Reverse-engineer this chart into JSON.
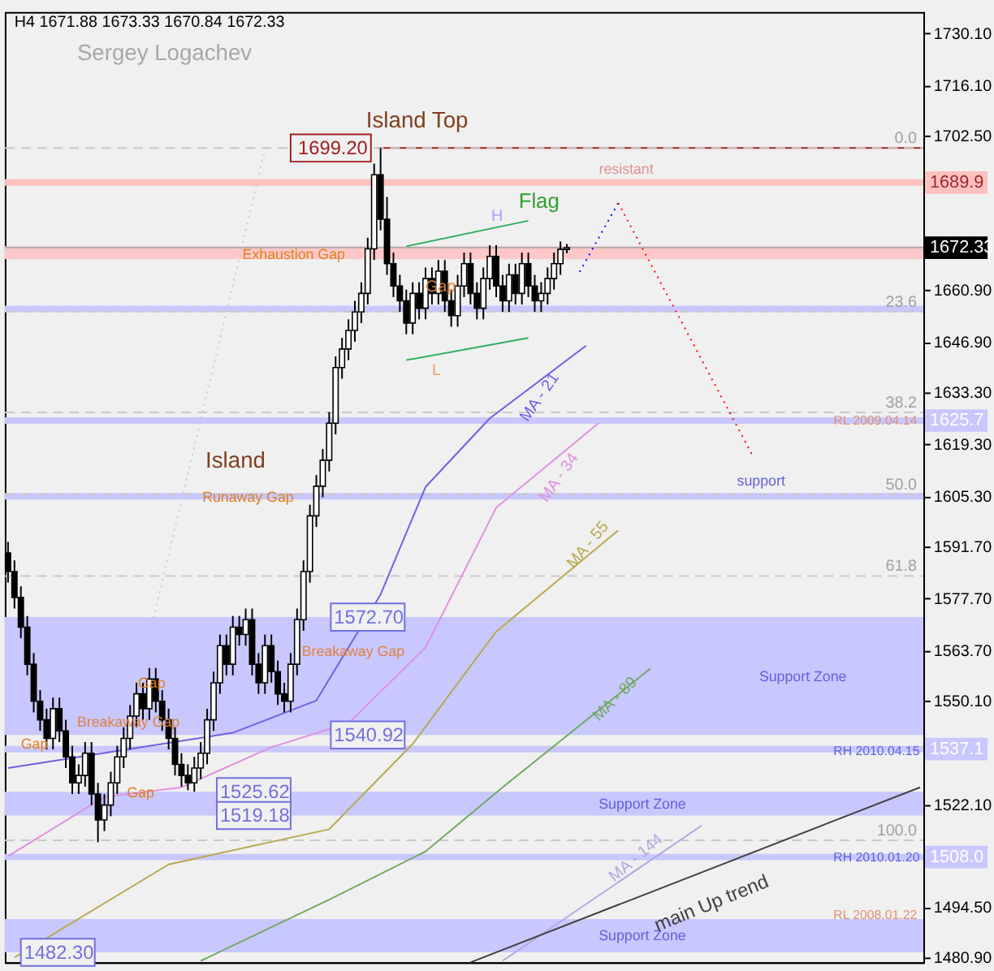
{
  "chart_data": {
    "type": "candlestick",
    "categories": [
      null,
      null,
      null,
      null,
      null,
      null,
      null,
      null,
      null,
      null,
      null,
      null,
      null,
      null,
      null,
      null,
      null,
      null,
      null,
      null,
      null,
      null,
      null,
      null,
      null,
      null,
      null,
      null,
      null,
      null,
      null,
      null,
      null,
      null,
      null,
      null,
      null,
      null,
      null,
      null,
      null,
      null,
      null,
      null,
      null,
      null,
      null,
      null,
      null,
      null,
      null,
      null,
      null,
      null,
      null,
      null,
      null,
      null,
      null,
      null,
      null,
      null,
      null,
      null,
      null,
      null,
      null,
      null,
      null,
      null,
      null,
      null,
      null,
      null,
      null,
      null,
      null,
      null,
      null,
      null,
      null,
      null,
      null,
      null,
      null,
      null,
      null,
      null,
      null,
      null,
      null,
      null,
      null,
      null,
      null,
      null,
      null,
      null,
      null,
      null,
      null,
      null,
      null,
      null,
      null,
      null,
      null,
      null,
      null,
      null,
      null,
      null,
      null,
      null,
      null,
      null,
      null,
      null,
      null,
      null,
      null,
      null,
      null,
      null,
      null,
      null,
      null,
      null,
      null,
      null,
      null,
      null,
      null,
      null,
      null,
      null,
      null,
      null,
      null,
      null,
      null,
      null,
      null
    ],
    "ohlc": [
      [
        1590,
        1593,
        1582,
        1585
      ],
      [
        1585,
        1588,
        1575,
        1578
      ],
      [
        1578,
        1581,
        1567,
        1570
      ],
      [
        1570,
        1573,
        1557,
        1560
      ],
      [
        1560,
        1563,
        1547,
        1550
      ],
      [
        1550,
        1553,
        1542,
        1545
      ],
      [
        1545,
        1548,
        1537,
        1540
      ],
      [
        1540,
        1551,
        1537,
        1548
      ],
      [
        1548,
        1551,
        1539,
        1542
      ],
      [
        1542,
        1545,
        1532,
        1535
      ],
      [
        1535,
        1538,
        1525,
        1528
      ],
      [
        1528,
        1533,
        1525,
        1530
      ],
      [
        1530,
        1539,
        1527,
        1536
      ],
      [
        1536,
        1539,
        1522,
        1525
      ],
      [
        1525,
        1528,
        1512,
        1518
      ],
      [
        1518,
        1525,
        1515,
        1522
      ],
      [
        1522,
        1531,
        1519,
        1528
      ],
      [
        1528,
        1538,
        1525,
        1535
      ],
      [
        1535,
        1543,
        1532,
        1540
      ],
      [
        1540,
        1549,
        1537,
        1546
      ],
      [
        1546,
        1555,
        1543,
        1552
      ],
      [
        1552,
        1555,
        1545,
        1548
      ],
      [
        1548,
        1559,
        1545,
        1556
      ],
      [
        1556,
        1559,
        1547,
        1550
      ],
      [
        1550,
        1553,
        1542,
        1545
      ],
      [
        1545,
        1548,
        1537,
        1540
      ],
      [
        1540,
        1543,
        1530,
        1533
      ],
      [
        1533,
        1536,
        1527,
        1530
      ],
      [
        1530,
        1533,
        1526,
        1528
      ],
      [
        1528,
        1535,
        1525.62,
        1532
      ],
      [
        1532,
        1539,
        1529,
        1536
      ],
      [
        1536,
        1548,
        1533,
        1545
      ],
      [
        1545,
        1558,
        1542,
        1555
      ],
      [
        1555,
        1568,
        1552,
        1565
      ],
      [
        1565,
        1568,
        1557,
        1560
      ],
      [
        1560,
        1573,
        1557,
        1570
      ],
      [
        1570,
        1573,
        1565,
        1568
      ],
      [
        1568,
        1575,
        1565,
        1572
      ],
      [
        1572,
        1575,
        1557,
        1560
      ],
      [
        1560,
        1563,
        1552,
        1555
      ],
      [
        1555,
        1568,
        1552,
        1565
      ],
      [
        1565,
        1568,
        1555,
        1558
      ],
      [
        1558,
        1561,
        1549,
        1552
      ],
      [
        1552,
        1555,
        1547,
        1550
      ],
      [
        1550,
        1563,
        1547,
        1560
      ],
      [
        1560,
        1575,
        1557,
        1572
      ],
      [
        1572,
        1588,
        1569,
        1585
      ],
      [
        1585,
        1603,
        1582,
        1600
      ],
      [
        1600,
        1611,
        1597,
        1608
      ],
      [
        1608,
        1618,
        1605,
        1615
      ],
      [
        1615,
        1628,
        1612,
        1625
      ],
      [
        1625,
        1643,
        1622,
        1640
      ],
      [
        1640,
        1648,
        1637,
        1645
      ],
      [
        1645,
        1653,
        1642,
        1650
      ],
      [
        1650,
        1658,
        1647,
        1655
      ],
      [
        1655,
        1663,
        1652,
        1660
      ],
      [
        1660,
        1675,
        1657,
        1672
      ],
      [
        1672,
        1695,
        1669,
        1692
      ],
      [
        1692,
        1699.2,
        1677,
        1680
      ],
      [
        1680,
        1686,
        1665,
        1668
      ],
      [
        1668,
        1671,
        1659,
        1662
      ],
      [
        1662,
        1665,
        1655,
        1658
      ],
      [
        1658,
        1661,
        1649,
        1652
      ],
      [
        1652,
        1663,
        1649,
        1660
      ],
      [
        1660,
        1663,
        1653,
        1656
      ],
      [
        1656,
        1667,
        1653,
        1664
      ],
      [
        1664,
        1667,
        1657,
        1660
      ],
      [
        1660,
        1669,
        1657,
        1666
      ],
      [
        1666,
        1669,
        1655,
        1658
      ],
      [
        1658,
        1661,
        1651,
        1654
      ],
      [
        1654,
        1665,
        1651,
        1662
      ],
      [
        1662,
        1671,
        1659,
        1668
      ],
      [
        1668,
        1671,
        1657,
        1660
      ],
      [
        1660,
        1663,
        1653,
        1656
      ],
      [
        1656,
        1667,
        1653,
        1664
      ],
      [
        1664,
        1673,
        1661,
        1670
      ],
      [
        1670,
        1673,
        1659,
        1662
      ],
      [
        1662,
        1665,
        1655,
        1658
      ],
      [
        1658,
        1668,
        1655,
        1665
      ],
      [
        1665,
        1668,
        1657,
        1660
      ],
      [
        1660,
        1671,
        1657,
        1668
      ],
      [
        1668,
        1671,
        1659,
        1662
      ],
      [
        1662,
        1665,
        1655,
        1658
      ],
      [
        1658,
        1663,
        1655,
        1660
      ],
      [
        1660,
        1667,
        1657,
        1664
      ],
      [
        1664,
        1671,
        1661,
        1668
      ],
      [
        1668,
        1674,
        1665,
        1671.88
      ],
      [
        1671.88,
        1673.33,
        1670.84,
        1672.33
      ],
      null,
      null,
      null,
      null,
      null,
      null,
      null,
      null,
      null,
      null,
      null,
      null,
      null,
      null,
      null,
      null,
      null,
      null,
      null,
      null,
      null,
      null,
      null,
      null,
      null,
      null,
      null,
      null,
      null,
      null,
      null,
      null,
      null,
      null,
      null,
      null,
      null,
      null,
      null,
      null,
      null,
      null,
      null,
      null,
      null,
      null,
      null,
      null,
      null,
      null,
      null,
      null,
      null,
      null,
      null
    ],
    "series": [
      {
        "name": "MA - 21",
        "type": "line",
        "color": "#7060e0",
        "values": [
          1532.0,
          null,
          null,
          null,
          null,
          null,
          null,
          null,
          null,
          null,
          null,
          null,
          null,
          null,
          null,
          null,
          null,
          null,
          null,
          null,
          null,
          null,
          null,
          null,
          null,
          null,
          null,
          null,
          null,
          null,
          null,
          null,
          null,
          null,
          null,
          1541.5,
          null,
          null,
          null,
          null,
          null,
          null,
          null,
          null,
          null,
          null,
          null,
          null,
          1550.2,
          null,
          null,
          null,
          null,
          null,
          null,
          null,
          null,
          null,
          1578.8,
          null,
          null,
          null,
          null,
          null,
          null,
          1607.8,
          null,
          null,
          null,
          null,
          null,
          null,
          null,
          null,
          null,
          1626.3,
          null,
          null,
          null,
          null,
          null,
          null,
          null,
          null,
          null,
          null,
          null,
          null,
          null,
          null,
          1645.9,
          null,
          null,
          null,
          null,
          null,
          null,
          null,
          null,
          null,
          null,
          null,
          null,
          null,
          null,
          null,
          null,
          null,
          null,
          null,
          null,
          null,
          null,
          null,
          null,
          null,
          null,
          null,
          null,
          null,
          null,
          null,
          null,
          null,
          null,
          null,
          null,
          null,
          null,
          null,
          null,
          null,
          null,
          null,
          null,
          null,
          null,
          null,
          null,
          null,
          null,
          null,
          null
        ]
      },
      {
        "name": "MA - 34",
        "type": "line",
        "color": "#e090e0",
        "values": [
          1508.2,
          null,
          null,
          null,
          null,
          null,
          null,
          null,
          null,
          null,
          null,
          null,
          null,
          null,
          null,
          1524.2,
          null,
          null,
          null,
          null,
          null,
          null,
          null,
          null,
          null,
          null,
          null,
          1526.8,
          null,
          null,
          null,
          null,
          null,
          null,
          null,
          null,
          null,
          null,
          null,
          null,
          null,
          1537.6,
          null,
          null,
          null,
          null,
          null,
          null,
          null,
          null,
          null,
          null,
          null,
          1544.1,
          null,
          null,
          null,
          null,
          null,
          null,
          null,
          null,
          null,
          null,
          null,
          1564.5,
          null,
          null,
          null,
          null,
          null,
          null,
          null,
          null,
          null,
          null,
          1602.2,
          null,
          null,
          null,
          null,
          null,
          null,
          null,
          null,
          null,
          null,
          null,
          null,
          null,
          null,
          null,
          1625.1,
          null,
          null,
          null,
          null,
          null,
          null,
          null,
          null,
          null,
          null,
          null,
          null,
          null,
          null,
          null,
          null,
          null,
          null,
          null,
          null,
          null,
          null,
          null,
          null,
          null,
          null,
          null,
          null,
          null,
          null,
          null,
          null,
          null,
          null,
          null,
          null,
          null,
          null,
          null,
          null,
          null,
          null,
          null,
          null,
          null,
          null,
          null,
          null,
          null,
          null
        ]
      },
      {
        "name": "MA - 55",
        "type": "line",
        "color": "#b8a850",
        "values": [
          null,
          1480.9,
          null,
          null,
          null,
          null,
          null,
          null,
          null,
          null,
          null,
          null,
          null,
          null,
          null,
          null,
          null,
          null,
          null,
          null,
          null,
          null,
          null,
          null,
          null,
          1506.0,
          null,
          null,
          null,
          null,
          null,
          null,
          null,
          null,
          null,
          null,
          null,
          null,
          null,
          null,
          null,
          null,
          null,
          null,
          null,
          null,
          null,
          null,
          null,
          null,
          1515.5,
          null,
          null,
          null,
          null,
          null,
          null,
          null,
          null,
          null,
          null,
          null,
          null,
          1538.5,
          null,
          null,
          null,
          null,
          null,
          null,
          null,
          null,
          null,
          null,
          null,
          null,
          1568.8,
          null,
          null,
          null,
          null,
          null,
          null,
          null,
          null,
          null,
          null,
          null,
          null,
          null,
          null,
          null,
          null,
          null,
          null,
          1596.1,
          null,
          null,
          null,
          null,
          null,
          null,
          null,
          null,
          null,
          null,
          null,
          null,
          null,
          null,
          null,
          null,
          null,
          null,
          null,
          null,
          null,
          null,
          null,
          null,
          null,
          null,
          null,
          null,
          null,
          null,
          null,
          null,
          null,
          null,
          null,
          null,
          null,
          null,
          null,
          null,
          null,
          null,
          null,
          null,
          null,
          null,
          null
        ]
      },
      {
        "name": "MA - 89",
        "type": "line",
        "color": "#70a860",
        "values": [
          null,
          null,
          null,
          null,
          null,
          null,
          null,
          null,
          null,
          null,
          null,
          null,
          null,
          null,
          null,
          null,
          null,
          null,
          null,
          null,
          null,
          null,
          null,
          null,
          null,
          null,
          null,
          null,
          null,
          null,
          1480.0,
          null,
          null,
          null,
          null,
          null,
          null,
          null,
          null,
          null,
          null,
          null,
          null,
          null,
          null,
          null,
          null,
          null,
          null,
          null,
          1496.5,
          null,
          null,
          null,
          null,
          null,
          null,
          null,
          null,
          null,
          null,
          null,
          null,
          null,
          null,
          1509.5,
          null,
          null,
          null,
          null,
          null,
          null,
          null,
          null,
          null,
          null,
          null,
          1526.8,
          null,
          null,
          null,
          null,
          null,
          null,
          null,
          null,
          null,
          null,
          null,
          null,
          null,
          null,
          null,
          null,
          null,
          null,
          null,
          null,
          null,
          null,
          1558.8,
          null,
          null,
          null,
          null,
          null,
          null,
          null,
          null,
          null,
          null,
          null,
          null,
          null,
          null,
          null,
          null,
          null,
          null,
          null,
          null,
          null,
          null,
          null,
          null,
          null,
          null,
          null,
          null,
          null,
          null,
          null,
          null,
          null,
          null,
          null,
          null,
          null,
          null,
          null,
          null,
          null,
          null
        ]
      },
      {
        "name": "MA - 144",
        "type": "line",
        "color": "#b0a8e0",
        "values": [
          null,
          null,
          null,
          null,
          null,
          null,
          null,
          null,
          null,
          null,
          null,
          null,
          null,
          null,
          null,
          null,
          null,
          null,
          null,
          null,
          null,
          null,
          null,
          null,
          null,
          null,
          null,
          null,
          null,
          null,
          null,
          null,
          null,
          null,
          null,
          null,
          null,
          null,
          null,
          null,
          null,
          null,
          null,
          null,
          null,
          null,
          null,
          null,
          null,
          null,
          null,
          null,
          null,
          null,
          null,
          null,
          null,
          null,
          null,
          null,
          null,
          null,
          null,
          null,
          null,
          null,
          null,
          null,
          null,
          null,
          null,
          null,
          null,
          null,
          null,
          null,
          null,
          1480.0,
          null,
          null,
          null,
          null,
          null,
          null,
          null,
          null,
          null,
          null,
          null,
          null,
          null,
          null,
          null,
          null,
          null,
          null,
          null,
          null,
          null,
          null,
          null,
          null,
          null,
          null,
          null,
          null,
          null,
          null,
          1516.5,
          null,
          null,
          null,
          null,
          null,
          null,
          null,
          null,
          null,
          null,
          null,
          null,
          null,
          null,
          null,
          null,
          null,
          null,
          null,
          null,
          null,
          null,
          null,
          null,
          null,
          null,
          null,
          null,
          null,
          null,
          null,
          null,
          null,
          null
        ]
      },
      {
        "name": "main Up trend",
        "type": "line",
        "color": "#404040",
        "values": [
          null,
          null,
          null,
          null,
          null,
          null,
          null,
          null,
          null,
          null,
          null,
          null,
          null,
          null,
          null,
          null,
          null,
          null,
          null,
          null,
          null,
          null,
          null,
          null,
          null,
          null,
          null,
          null,
          null,
          null,
          null,
          null,
          null,
          null,
          null,
          null,
          null,
          null,
          null,
          null,
          null,
          null,
          null,
          null,
          null,
          null,
          null,
          null,
          null,
          null,
          null,
          null,
          null,
          null,
          null,
          null,
          null,
          null,
          null,
          null,
          null,
          null,
          null,
          null,
          null,
          null,
          null,
          null,
          null,
          null,
          null,
          null,
          1479.6,
          null,
          null,
          null,
          null,
          null,
          null,
          null,
          null,
          null,
          null,
          null,
          null,
          null,
          null,
          null,
          null,
          null,
          null,
          null,
          null,
          null,
          null,
          null,
          null,
          null,
          null,
          null,
          null,
          null,
          null,
          null,
          null,
          null,
          null,
          null,
          null,
          null,
          null,
          null,
          null,
          null,
          null,
          null,
          null,
          null,
          null,
          null,
          null,
          null,
          null,
          null,
          null,
          null,
          null,
          null,
          null,
          null,
          null,
          null,
          null,
          null,
          null,
          null,
          null,
          null,
          null,
          null,
          null,
          null,
          1526.8
        ]
      },
      {
        "type": "line",
        "color": "#0000ff",
        "line_style": "dotted",
        "values": [
          null,
          null,
          null,
          null,
          null,
          null,
          null,
          null,
          null,
          null,
          null,
          null,
          null,
          null,
          null,
          null,
          null,
          null,
          null,
          null,
          null,
          null,
          null,
          null,
          null,
          null,
          null,
          null,
          null,
          null,
          null,
          null,
          null,
          null,
          null,
          null,
          null,
          null,
          null,
          null,
          null,
          null,
          null,
          null,
          null,
          null,
          null,
          null,
          null,
          null,
          null,
          null,
          null,
          null,
          null,
          null,
          null,
          null,
          null,
          null,
          null,
          null,
          null,
          null,
          null,
          null,
          null,
          null,
          null,
          null,
          null,
          null,
          null,
          null,
          null,
          null,
          null,
          null,
          null,
          null,
          null,
          null,
          null,
          null,
          null,
          null,
          null,
          null,
          null,
          1665.8,
          null,
          null,
          null,
          null,
          null,
          1684.4,
          null,
          null,
          null,
          null,
          null,
          null,
          null,
          null,
          null,
          null,
          null,
          null,
          null,
          null,
          null,
          null,
          null,
          null,
          null,
          null,
          null,
          null,
          null,
          null,
          null,
          null,
          null,
          null,
          null,
          null,
          null,
          null,
          null,
          null,
          null,
          null,
          null,
          null,
          null,
          null,
          null,
          null,
          null,
          null,
          null,
          null,
          null
        ]
      },
      {
        "type": "line",
        "color": "#ff0000",
        "line_style": "dotted",
        "values": [
          null,
          null,
          null,
          null,
          null,
          null,
          null,
          null,
          null,
          null,
          null,
          null,
          null,
          null,
          null,
          null,
          null,
          null,
          null,
          null,
          null,
          null,
          null,
          null,
          null,
          null,
          null,
          null,
          null,
          null,
          null,
          null,
          null,
          null,
          null,
          null,
          null,
          null,
          null,
          null,
          null,
          null,
          null,
          null,
          null,
          null,
          null,
          null,
          null,
          null,
          null,
          null,
          null,
          null,
          null,
          null,
          null,
          null,
          null,
          null,
          null,
          null,
          null,
          null,
          null,
          null,
          null,
          null,
          null,
          null,
          null,
          null,
          null,
          null,
          null,
          null,
          null,
          null,
          null,
          null,
          null,
          null,
          null,
          null,
          null,
          null,
          null,
          null,
          null,
          null,
          null,
          null,
          null,
          null,
          null,
          1684.4,
          null,
          null,
          null,
          null,
          null,
          null,
          null,
          null,
          null,
          null,
          null,
          null,
          null,
          null,
          null,
          null,
          null,
          null,
          null,
          null,
          1616.0,
          null,
          null,
          null,
          null,
          null,
          null,
          null,
          null,
          null,
          null,
          null,
          null,
          null,
          null,
          null,
          null,
          null,
          null,
          null,
          null,
          null,
          null,
          null,
          null,
          null,
          null
        ]
      },
      {
        "type": "line",
        "color": "#30b060",
        "values": [
          null,
          null,
          null,
          null,
          null,
          null,
          null,
          null,
          null,
          null,
          null,
          null,
          null,
          null,
          null,
          null,
          null,
          null,
          null,
          null,
          null,
          null,
          null,
          null,
          null,
          null,
          null,
          null,
          null,
          null,
          null,
          null,
          null,
          null,
          null,
          null,
          null,
          null,
          null,
          null,
          null,
          null,
          null,
          null,
          null,
          null,
          null,
          null,
          null,
          null,
          null,
          null,
          null,
          null,
          null,
          null,
          null,
          null,
          null,
          null,
          null,
          null,
          1672.7,
          null,
          null,
          null,
          null,
          null,
          null,
          null,
          null,
          null,
          null,
          null,
          null,
          null,
          null,
          null,
          null,
          null,
          null,
          1679.6,
          null,
          null,
          null,
          null,
          null,
          null,
          null,
          null,
          null,
          null,
          null,
          null,
          null,
          null,
          null,
          null,
          null,
          null,
          null,
          null,
          null,
          null,
          null,
          null,
          null,
          null,
          null,
          null,
          null,
          null,
          null,
          null,
          null,
          null,
          null,
          null,
          null,
          null,
          null,
          null,
          null,
          null,
          null,
          null,
          null,
          null,
          null,
          null,
          null,
          null,
          null,
          null,
          null,
          null,
          null,
          null,
          null,
          null,
          null,
          null,
          null
        ]
      },
      {
        "type": "line",
        "color": "#30b060",
        "values": [
          null,
          null,
          null,
          null,
          null,
          null,
          null,
          null,
          null,
          null,
          null,
          null,
          null,
          null,
          null,
          null,
          null,
          null,
          null,
          null,
          null,
          null,
          null,
          null,
          null,
          null,
          null,
          null,
          null,
          null,
          null,
          null,
          null,
          null,
          null,
          null,
          null,
          null,
          null,
          null,
          null,
          null,
          null,
          null,
          null,
          null,
          null,
          null,
          null,
          null,
          null,
          null,
          null,
          null,
          null,
          null,
          null,
          null,
          null,
          null,
          null,
          null,
          1642.0,
          null,
          null,
          null,
          null,
          null,
          null,
          null,
          null,
          null,
          null,
          null,
          null,
          null,
          null,
          null,
          null,
          null,
          null,
          1648.0,
          null,
          null,
          null,
          null,
          null,
          null,
          null,
          null,
          null,
          null,
          null,
          null,
          null,
          null,
          null,
          null,
          null,
          null,
          null,
          null,
          null,
          null,
          null,
          null,
          null,
          null,
          null,
          null,
          null,
          null,
          null,
          null,
          null,
          null,
          null,
          null,
          null,
          null,
          null,
          null,
          null,
          null,
          null,
          null,
          null,
          null,
          null,
          null,
          null,
          null,
          null,
          null,
          null,
          null,
          null,
          null,
          null,
          null,
          null,
          null,
          null
        ]
      },
      {
        "type": "line",
        "color": "#c8c8c8",
        "line_style": "dotted",
        "values": [
          null,
          null,
          null,
          null,
          null,
          null,
          null,
          null,
          null,
          null,
          null,
          null,
          null,
          null,
          null,
          1516.9,
          null,
          null,
          null,
          null,
          null,
          null,
          null,
          null,
          null,
          null,
          null,
          null,
          null,
          null,
          null,
          null,
          null,
          null,
          null,
          null,
          null,
          null,
          null,
          null,
          1698.7,
          null,
          null,
          null,
          null,
          null,
          null,
          null,
          null,
          null,
          null,
          null,
          null,
          null,
          null,
          null,
          null,
          null,
          null,
          null,
          null,
          null,
          null,
          null,
          null,
          null,
          null,
          null,
          null,
          null,
          null,
          null,
          null,
          null,
          null,
          null,
          null,
          null,
          null,
          null,
          null,
          null,
          null,
          null,
          null,
          null,
          null,
          null,
          null,
          null,
          null,
          null,
          null,
          null,
          null,
          null,
          null,
          null,
          null,
          null,
          null,
          null,
          null,
          null,
          null,
          null,
          null,
          null,
          null,
          null,
          null,
          null,
          null,
          null,
          null,
          null,
          null,
          null,
          null,
          null,
          null,
          null,
          null,
          null,
          null,
          null,
          null,
          null,
          null,
          null,
          null,
          null,
          null,
          null,
          null,
          null,
          null,
          null,
          null,
          null,
          null,
          null,
          null
        ]
      }
    ],
    "ylim": [
      1479.6,
      1735.9
    ],
    "yticks": [
      {
        "value": 1730.1,
        "label": "1730.10"
      },
      {
        "value": 1716.1,
        "label": "1716.10"
      },
      {
        "value": 1702.5,
        "label": "1702.50"
      },
      {
        "value": 1660.9,
        "label": "1660.90"
      },
      {
        "value": 1646.9,
        "label": "1646.90"
      },
      {
        "value": 1633.3,
        "label": "1633.30"
      },
      {
        "value": 1619.3,
        "label": "1619.30"
      },
      {
        "value": 1605.3,
        "label": "1605.30"
      },
      {
        "value": 1591.7,
        "label": "1591.70"
      },
      {
        "value": 1577.7,
        "label": "1577.70"
      },
      {
        "value": 1563.7,
        "label": "1563.70"
      },
      {
        "value": 1550.1,
        "label": "1550.10"
      },
      {
        "value": 1522.1,
        "label": "1522.10"
      },
      {
        "value": 1494.5,
        "label": "1494.50"
      },
      {
        "value": 1480.9,
        "label": "1480.90"
      }
    ],
    "tick_labels": "y",
    "bands": [
      {
        "axis": "y",
        "from": 1669.2,
        "to": 1672.7,
        "color": "#ffc8c8"
      },
      {
        "axis": "y",
        "from": 1540.92,
        "to": 1572.7,
        "color": "#c8c8ff",
        "label": "Support Zone"
      },
      {
        "axis": "y",
        "from": 1519.18,
        "to": 1525.62,
        "color": "#c8c8ff",
        "label": "Support Zone"
      },
      {
        "axis": "y",
        "from": 1482.3,
        "to": 1491.3,
        "color": "#c8c8ff",
        "label": "Support Zone"
      }
    ],
    "ref_lines": [
      {
        "axis": "y",
        "value": 1699.2,
        "label": "1699.20",
        "color": "#a02020"
      },
      {
        "axis": "y",
        "value": 1689.9,
        "label": "1689.9",
        "color": "#ffc0c0"
      },
      {
        "axis": "y",
        "value": 1672.33,
        "label": "1672.33",
        "color": "#b0b0b0"
      },
      {
        "axis": "y",
        "value": 1655.8,
        "color": "#c8c8ff"
      },
      {
        "axis": "y",
        "value": 1625.7,
        "label": "1625.7",
        "color": "#c8c8ff"
      },
      {
        "axis": "y",
        "value": 1605.3,
        "color": "#c8c8ff"
      },
      {
        "axis": "y",
        "value": 1537.1,
        "label": "1537.1",
        "color": "#c8c8ff"
      },
      {
        "axis": "y",
        "value": 1508.0,
        "label": "1508.0",
        "color": "#c8c8ff"
      },
      {
        "axis": "y",
        "value": 1699.2,
        "color": "#c8c8c8",
        "line_style": "dashed"
      },
      {
        "axis": "y",
        "value": 1655.1,
        "color": "#c8c8c8",
        "line_style": "dashed"
      },
      {
        "axis": "y",
        "value": 1627.9,
        "color": "#c8c8c8",
        "line_style": "dashed"
      },
      {
        "axis": "y",
        "value": 1605.85,
        "color": "#c8c8c8",
        "line_style": "dashed"
      },
      {
        "axis": "y",
        "value": 1583.8,
        "color": "#c8c8c8",
        "line_style": "dashed"
      },
      {
        "axis": "y",
        "value": 1512.5,
        "color": "#c8c8c8",
        "line_style": "dashed"
      }
    ],
    "annotations": [
      "H4 1671.88 1673.33 1670.84 1672.33",
      "Sergey Logachev",
      "Island Top",
      "Flag",
      "H",
      "L",
      "Exhaustion Gap",
      "Gap",
      "Island",
      "Runaway Gap",
      "Breakaway Gap",
      "Gap",
      "Breakaway Gap",
      "Gap",
      "Gap",
      "resistant",
      "support",
      "RL 2009.04.14",
      "RH 2010.04.15",
      "RH 2010.01.20",
      "RL 2008.01.22",
      {
        "text": "1572.70",
        "y": 1572.7
      },
      {
        "text": "1540.92",
        "y": 1540.92
      },
      {
        "text": "1525.62",
        "y": 1525.62
      },
      {
        "text": "1519.18",
        "y": 1519.18
      },
      {
        "text": "1482.30",
        "y": 1482.3
      },
      {
        "text": "0.0",
        "y": 1699.2
      },
      {
        "text": "23.6",
        "y": 1655.1
      },
      {
        "text": "38.2",
        "y": 1627.9
      },
      {
        "text": "50.0",
        "y": 1605.85
      },
      {
        "text": "61.8",
        "y": 1583.8
      },
      {
        "text": "100.0",
        "y": 1512.5
      }
    ]
  }
}
